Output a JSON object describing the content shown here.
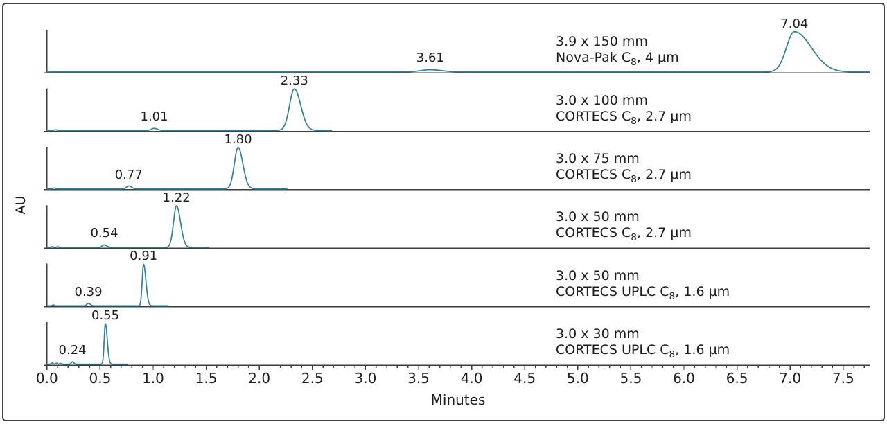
{
  "figure": {
    "background": "#ffffff",
    "frame_color": "#434343",
    "axis_color": "#3d3d3d",
    "text_color": "#1c1c1c"
  },
  "chart_data": {
    "type": "line",
    "title": "",
    "xlabel": "Minutes",
    "ylabel": "AU",
    "x_range": [
      0.0,
      7.75
    ],
    "x_major_tick_interval": 0.5,
    "x_minor_tick_interval": 0.1,
    "x_tick_labels": [
      "0.0",
      "0.5",
      "1.0",
      "1.5",
      "2.0",
      "2.5",
      "3.0",
      "3.5",
      "4.0",
      "4.5",
      "5.0",
      "5.5",
      "6.0",
      "6.5",
      "7.0",
      "7.5"
    ],
    "grid": false,
    "legend": "none",
    "trace_color": "#2e7f99",
    "panels": [
      {
        "column_line1": "3.9 x 150 mm",
        "column_line2_pre": "Nova-Pak C",
        "column_line2_sub": "8",
        "column_line2_post": ", 4 µm",
        "trace_end_min": 7.75,
        "peaks": [
          {
            "label": "3.61",
            "rt_min": 3.61,
            "rel_height": 0.055,
            "sigma_left_min": 0.09,
            "sigma_right_min": 0.11
          },
          {
            "label": "7.04",
            "rt_min": 7.04,
            "rel_height": 0.97,
            "sigma_left_min": 0.075,
            "sigma_right_min": 0.16
          }
        ],
        "noise": []
      },
      {
        "column_line1": "3.0 x 100 mm",
        "column_line2_pre": "CORTECS C",
        "column_line2_sub": "8",
        "column_line2_post": ", 2.7 µm",
        "trace_end_min": 2.68,
        "peaks": [
          {
            "label": "1.01",
            "rt_min": 1.01,
            "rel_height": 0.05,
            "sigma_left_min": 0.025,
            "sigma_right_min": 0.03
          },
          {
            "label": "2.33",
            "rt_min": 2.33,
            "rel_height": 1.0,
            "sigma_left_min": 0.045,
            "sigma_right_min": 0.06
          }
        ],
        "noise": [
          {
            "rt_min": 0.08,
            "rel_height": 0.015,
            "sigma_min": 0.012
          }
        ]
      },
      {
        "column_line1": "3.0 x 75 mm",
        "column_line2_pre": "CORTECS C",
        "column_line2_sub": "8",
        "column_line2_post": ", 2.7 µm",
        "trace_end_min": 2.26,
        "peaks": [
          {
            "label": "0.77",
            "rt_min": 0.77,
            "rel_height": 0.07,
            "sigma_left_min": 0.02,
            "sigma_right_min": 0.026
          },
          {
            "label": "1.80",
            "rt_min": 1.8,
            "rel_height": 1.0,
            "sigma_left_min": 0.035,
            "sigma_right_min": 0.045
          }
        ],
        "noise": [
          {
            "rt_min": 0.07,
            "rel_height": 0.02,
            "sigma_min": 0.012
          }
        ]
      },
      {
        "column_line1": "3.0 x 50 mm",
        "column_line2_pre": "CORTECS C",
        "column_line2_sub": "8",
        "column_line2_post": ", 2.7 µm",
        "trace_end_min": 1.52,
        "peaks": [
          {
            "label": "0.54",
            "rt_min": 0.54,
            "rel_height": 0.06,
            "sigma_left_min": 0.018,
            "sigma_right_min": 0.022
          },
          {
            "label": "1.22",
            "rt_min": 1.22,
            "rel_height": 1.0,
            "sigma_left_min": 0.028,
            "sigma_right_min": 0.038
          }
        ],
        "noise": [
          {
            "rt_min": 0.05,
            "rel_height": 0.015,
            "sigma_min": 0.01
          },
          {
            "rt_min": 0.1,
            "rel_height": 0.015,
            "sigma_min": 0.01
          }
        ]
      },
      {
        "column_line1": "3.0 x 50 mm",
        "column_line2_pre": "CORTECS UPLC C",
        "column_line2_sub": "8",
        "column_line2_post": ", 1.6 µm",
        "trace_end_min": 1.14,
        "peaks": [
          {
            "label": "0.39",
            "rt_min": 0.39,
            "rel_height": 0.06,
            "sigma_left_min": 0.014,
            "sigma_right_min": 0.018
          },
          {
            "label": "0.91",
            "rt_min": 0.91,
            "rel_height": 1.0,
            "sigma_left_min": 0.013,
            "sigma_right_min": 0.022
          }
        ],
        "noise": [
          {
            "rt_min": 0.06,
            "rel_height": 0.02,
            "sigma_min": 0.01
          }
        ]
      },
      {
        "column_line1": "3.0 x 30 mm",
        "column_line2_pre": "CORTECS UPLC C",
        "column_line2_sub": "8",
        "column_line2_post": ", 1.6 µm",
        "trace_end_min": 0.76,
        "peaks": [
          {
            "label": "0.24",
            "rt_min": 0.24,
            "rel_height": 0.06,
            "sigma_left_min": 0.01,
            "sigma_right_min": 0.013
          },
          {
            "label": "0.55",
            "rt_min": 0.55,
            "rel_height": 0.98,
            "sigma_left_min": 0.011,
            "sigma_right_min": 0.018
          }
        ],
        "noise": [
          {
            "rt_min": 0.05,
            "rel_height": 0.03,
            "sigma_min": 0.009
          },
          {
            "rt_min": 0.09,
            "rel_height": 0.025,
            "sigma_min": 0.009
          },
          {
            "rt_min": 0.13,
            "rel_height": 0.02,
            "sigma_min": 0.009
          }
        ]
      }
    ]
  }
}
